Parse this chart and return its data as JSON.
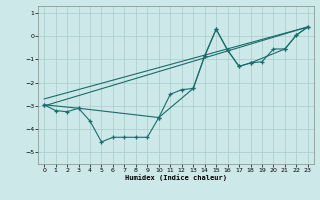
{
  "xlabel": "Humidex (Indice chaleur)",
  "background_color": "#cde8e8",
  "grid_color": "#aacccc",
  "line_color": "#1a6b6b",
  "xlim": [
    -0.5,
    23.5
  ],
  "ylim": [
    -5.5,
    1.3
  ],
  "xticks": [
    0,
    1,
    2,
    3,
    4,
    5,
    6,
    7,
    8,
    9,
    10,
    11,
    12,
    13,
    14,
    15,
    16,
    17,
    18,
    19,
    20,
    21,
    22,
    23
  ],
  "yticks": [
    -5,
    -4,
    -3,
    -2,
    -1,
    0,
    1
  ],
  "line1_x": [
    0,
    1,
    2,
    3,
    4,
    5,
    6,
    7,
    8,
    9,
    10,
    11,
    12,
    13,
    14,
    15,
    16,
    17,
    18,
    19,
    20,
    21,
    22,
    23
  ],
  "line1_y": [
    -2.95,
    -3.2,
    -3.25,
    -3.1,
    -3.65,
    -4.55,
    -4.35,
    -4.35,
    -4.35,
    -4.35,
    -3.5,
    -2.5,
    -2.3,
    -2.25,
    -0.85,
    0.3,
    -0.6,
    -1.3,
    -1.15,
    -1.1,
    -0.55,
    -0.55,
    0.05,
    0.4
  ],
  "line2_x": [
    0,
    3,
    10,
    13,
    14,
    15,
    16,
    17,
    18,
    21,
    22,
    23
  ],
  "line2_y": [
    -2.95,
    -3.1,
    -3.5,
    -2.25,
    -0.85,
    0.3,
    -0.6,
    -1.3,
    -1.15,
    -0.55,
    0.05,
    0.4
  ],
  "line3_x": [
    0,
    23
  ],
  "line3_y": [
    -3.0,
    0.4
  ],
  "line4_x": [
    0,
    23
  ],
  "line4_y": [
    -2.7,
    0.4
  ]
}
